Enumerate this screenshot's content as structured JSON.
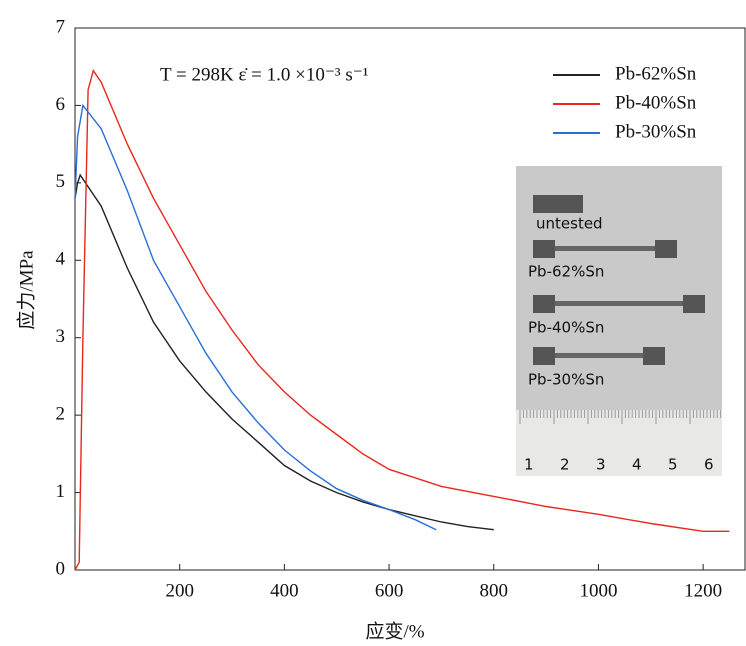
{
  "chart_data": {
    "type": "line",
    "annotation": "T = 298K  ε̇ = 1.0  ×10⁻³ s⁻¹",
    "xlabel": "应变/%",
    "ylabel": "应力/MPa",
    "xlim": [
      0,
      1280
    ],
    "ylim": [
      0,
      7
    ],
    "xticks": [
      200,
      400,
      600,
      800,
      1000,
      1200
    ],
    "yticks": [
      0,
      1,
      2,
      3,
      4,
      5,
      6,
      7
    ],
    "legend": "upper right",
    "series": [
      {
        "name": "Pb-62%Sn",
        "color": "#222222",
        "x": [
          0,
          5,
          10,
          50,
          100,
          150,
          200,
          250,
          300,
          350,
          400,
          450,
          500,
          550,
          600,
          650,
          700,
          750,
          800
        ],
        "values": [
          4.8,
          5.0,
          5.1,
          4.7,
          3.9,
          3.2,
          2.7,
          2.3,
          1.95,
          1.65,
          1.35,
          1.15,
          1.0,
          0.88,
          0.78,
          0.7,
          0.62,
          0.56,
          0.52
        ]
      },
      {
        "name": "Pb-40%Sn",
        "color": "#e8281e",
        "x": [
          0,
          8,
          15,
          25,
          35,
          50,
          100,
          150,
          200,
          250,
          300,
          350,
          400,
          450,
          500,
          550,
          600,
          700,
          800,
          900,
          1000,
          1100,
          1200,
          1250
        ],
        "values": [
          0,
          0.1,
          3,
          6.2,
          6.45,
          6.3,
          5.5,
          4.8,
          4.2,
          3.6,
          3.1,
          2.65,
          2.3,
          2.0,
          1.75,
          1.5,
          1.3,
          1.08,
          0.95,
          0.82,
          0.72,
          0.6,
          0.5,
          0.5
        ]
      },
      {
        "name": "Pb-30%Sn",
        "color": "#2a6fd6",
        "x": [
          0,
          5,
          15,
          50,
          100,
          150,
          200,
          250,
          300,
          350,
          400,
          450,
          500,
          550,
          600,
          650,
          690
        ],
        "values": [
          4.8,
          5.6,
          6.0,
          5.7,
          4.9,
          4.0,
          3.4,
          2.8,
          2.3,
          1.9,
          1.55,
          1.28,
          1.05,
          0.9,
          0.78,
          0.65,
          0.52
        ]
      }
    ],
    "inset": {
      "labels": [
        "untested",
        "Pb-62%Sn",
        "Pb-40%Sn",
        "Pb-30%Sn"
      ],
      "ruler": [
        "1",
        "2",
        "3",
        "4",
        "5",
        "6"
      ]
    }
  }
}
